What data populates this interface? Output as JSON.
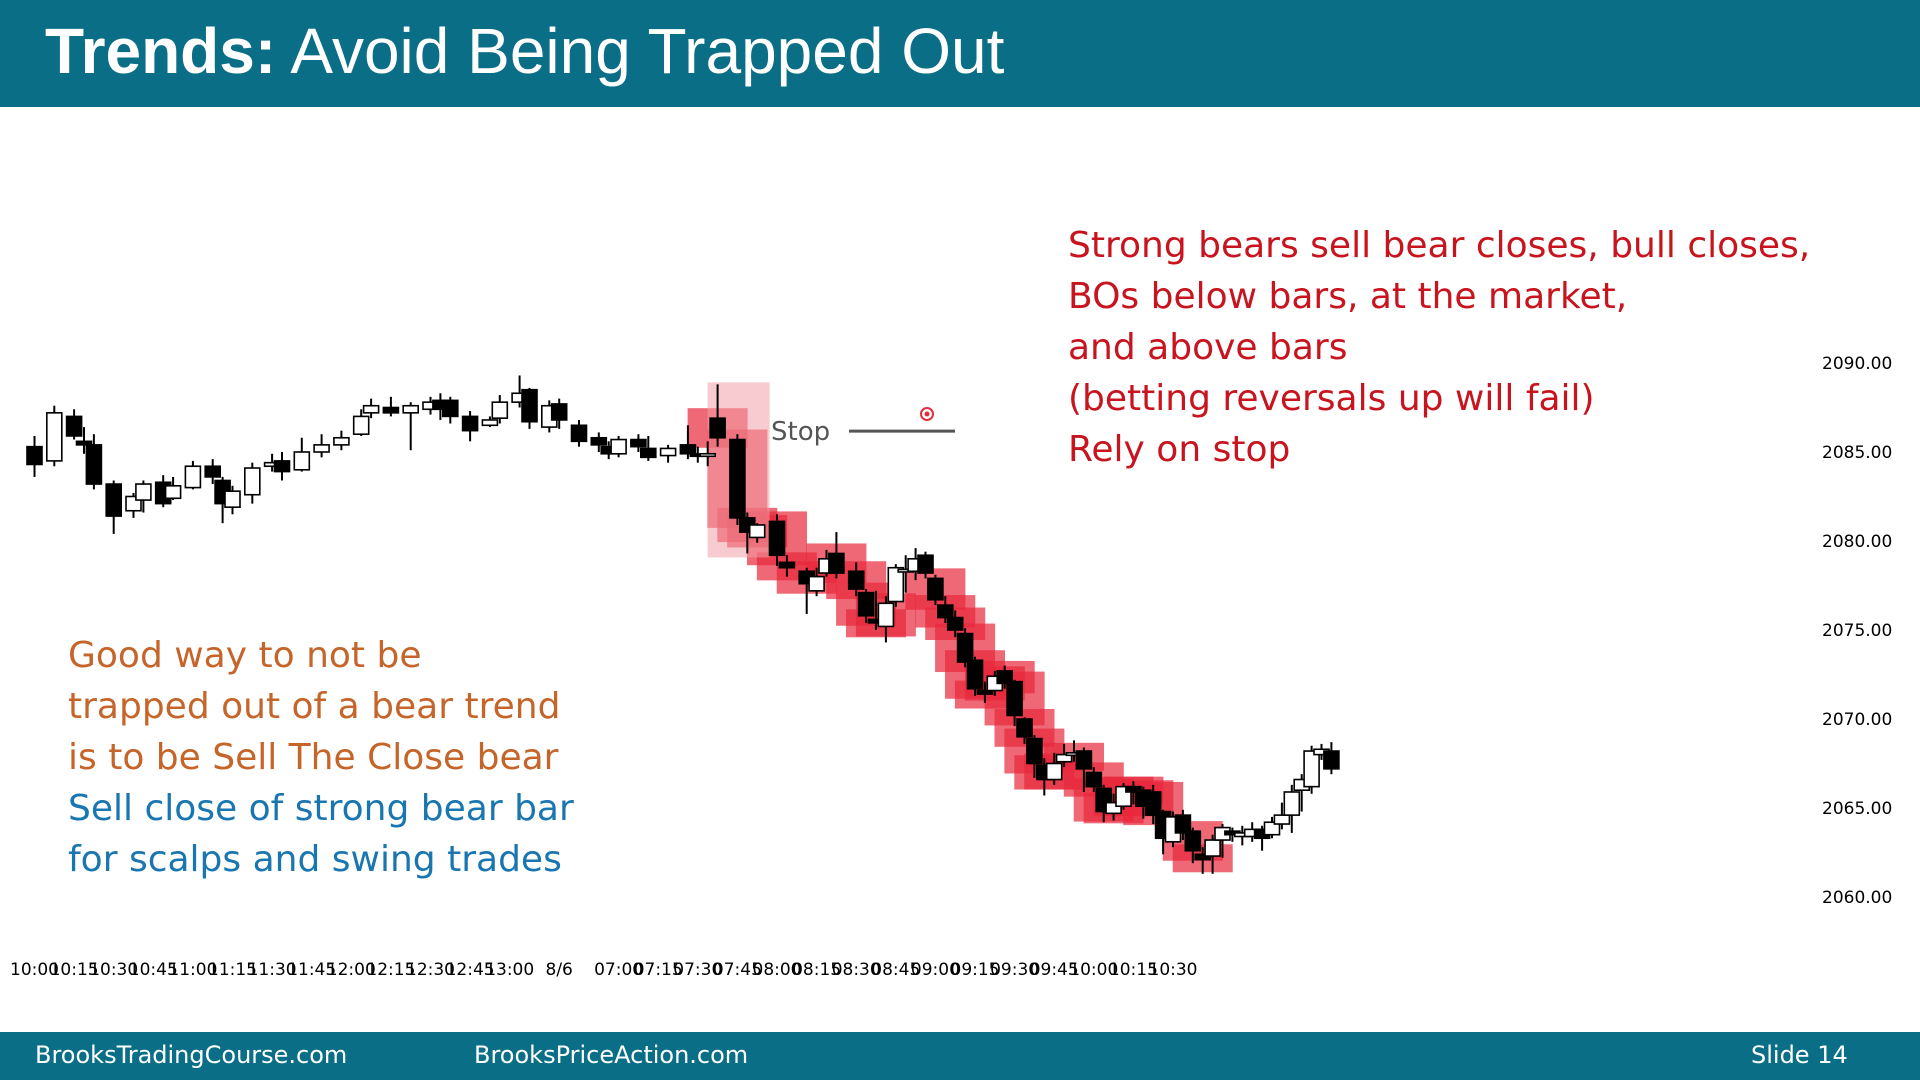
{
  "title": {
    "bold": "Trends:",
    "rest": " Avoid Being Trapped Out"
  },
  "stop_label": "Stop",
  "note_red": [
    "Strong bears sell bear closes, bull closes,",
    "BOs below bars, at the market,",
    "and above bars",
    "(betting reversals up will fail)",
    "Rely on stop"
  ],
  "note_orange": [
    "Good way to not be",
    "trapped out of a bear trend",
    "is to be Sell The Close bear"
  ],
  "note_blue": [
    "Sell close of strong bear bar",
    "for scalps and swing trades"
  ],
  "footer": {
    "left": "BrooksTradingCourse.com",
    "mid": "BrooksPriceAction.com",
    "right": "Slide  14"
  },
  "colors": {
    "header": "#0b6e87",
    "red_text": "#c8141e",
    "orange_text": "#c5652a",
    "blue_text": "#1976b0",
    "highlight": "#e8283c",
    "bull_body": "#ffffff",
    "bear_body": "#000000"
  },
  "chart_data": {
    "type": "candlestick",
    "y_ticks": [
      "2090.00",
      "2085.00",
      "2080.00",
      "2075.00",
      "2070.00",
      "2065.00",
      "2060.00"
    ],
    "ylim": [
      2058,
      2092
    ],
    "x_ticks": [
      "10:00",
      "10:15",
      "10:30",
      "10:45",
      "11:00",
      "11:15",
      "11:30",
      "11:45",
      "12:00",
      "12:15",
      "12:30",
      "12:45",
      "13:00",
      "8/6",
      "07:00",
      "07:15",
      "07:30",
      "07:45",
      "08:00",
      "08:15",
      "08:30",
      "08:45",
      "09:00",
      "09:15",
      "09:30",
      "09:45",
      "10:00",
      "10:15",
      "10:30"
    ],
    "x_tick_bar_index": [
      1,
      5,
      9,
      13,
      17,
      21,
      25,
      29,
      33,
      37,
      41,
      45,
      49,
      54,
      60,
      64,
      68,
      72,
      76,
      80,
      84,
      88,
      92,
      96,
      100,
      104,
      108,
      112,
      116
    ],
    "stop_level": 2085.5,
    "bars": [
      [
        2085.3,
        2084.3,
        2085.9,
        2083.6
      ],
      [
        2084.5,
        2087.2,
        2087.6,
        2084.2
      ],
      [
        2087.0,
        2085.9,
        2087.4,
        2085.7
      ],
      [
        2085.6,
        2085.4,
        2086.4,
        2084.9
      ],
      [
        2085.4,
        2083.2,
        2086.0,
        2082.9
      ],
      [
        2083.2,
        2081.4,
        2083.4,
        2080.4
      ],
      [
        2081.7,
        2082.5,
        2082.7,
        2081.3
      ],
      [
        2082.3,
        2083.2,
        2083.4,
        2081.6
      ],
      [
        2083.3,
        2082.1,
        2083.7,
        2081.9
      ],
      [
        2082.4,
        2083.1,
        2083.6,
        2082.3
      ],
      [
        2083.0,
        2084.2,
        2084.5,
        2082.9
      ],
      [
        2084.2,
        2083.6,
        2084.6,
        2083.2
      ],
      [
        2083.4,
        2082.1,
        2083.6,
        2081.0
      ],
      [
        2081.9,
        2082.8,
        2083.1,
        2081.5
      ],
      [
        2082.6,
        2084.1,
        2084.4,
        2082.1
      ],
      [
        2084.2,
        2084.4,
        2084.9,
        2083.9
      ],
      [
        2084.5,
        2083.9,
        2085.0,
        2083.4
      ],
      [
        2084.0,
        2085.0,
        2085.8,
        2083.9
      ],
      [
        2085.0,
        2085.4,
        2086.0,
        2084.7
      ],
      [
        2085.4,
        2085.8,
        2086.2,
        2085.1
      ],
      [
        2086.0,
        2087.0,
        2087.4,
        2085.9
      ],
      [
        2087.2,
        2087.6,
        2088.0,
        2086.9
      ],
      [
        2087.5,
        2087.2,
        2088.1,
        2087.0
      ],
      [
        2087.2,
        2087.6,
        2087.8,
        2085.1
      ],
      [
        2087.4,
        2087.8,
        2088.1,
        2087.1
      ],
      [
        2087.9,
        2087.4,
        2088.3,
        2086.8
      ],
      [
        2087.9,
        2087.0,
        2088.1,
        2086.6
      ],
      [
        2087.0,
        2086.2,
        2087.3,
        2085.6
      ],
      [
        2086.5,
        2086.8,
        2087.0,
        2086.4
      ],
      [
        2086.9,
        2087.8,
        2088.2,
        2086.6
      ],
      [
        2087.8,
        2088.3,
        2089.3,
        2087.5
      ],
      [
        2088.5,
        2086.7,
        2088.6,
        2086.3
      ],
      [
        2086.4,
        2087.6,
        2087.9,
        2086.1
      ],
      [
        2087.7,
        2086.8,
        2088.0,
        2086.3
      ],
      [
        2086.5,
        2085.6,
        2086.8,
        2085.3
      ],
      [
        2085.8,
        2085.4,
        2086.1,
        2085.0
      ],
      [
        2085.3,
        2084.9,
        2085.6,
        2084.6
      ],
      [
        2084.9,
        2085.7,
        2085.9,
        2084.7
      ],
      [
        2085.7,
        2085.3,
        2086.0,
        2085.0
      ],
      [
        2085.2,
        2084.7,
        2085.9,
        2084.5
      ],
      [
        2084.8,
        2085.2,
        2085.4,
        2084.4
      ],
      [
        2085.4,
        2084.9,
        2086.5,
        2084.6
      ],
      [
        2084.9,
        2084.8,
        2085.3,
        2084.4
      ],
      [
        2084.8,
        2084.9,
        2085.6,
        2084.2
      ],
      [
        2086.9,
        2085.8,
        2088.8,
        2085.3
      ],
      [
        2085.7,
        2081.3,
        2086.0,
        2080.9
      ],
      [
        2081.3,
        2080.5,
        2081.6,
        2079.3
      ],
      [
        2080.2,
        2080.9,
        2081.0,
        2079.9
      ],
      [
        2081.1,
        2079.2,
        2081.5,
        2078.6
      ],
      [
        2078.8,
        2078.5,
        2079.2,
        2078.0
      ],
      [
        2078.3,
        2077.6,
        2078.5,
        2075.9
      ],
      [
        2077.2,
        2078.0,
        2078.5,
        2076.9
      ],
      [
        2078.2,
        2079.0,
        2079.5,
        2078.0
      ],
      [
        2079.3,
        2078.2,
        2080.5,
        2077.9
      ],
      [
        2078.3,
        2077.3,
        2078.8,
        2076.9
      ],
      [
        2077.1,
        2075.8,
        2077.3,
        2075.4
      ],
      [
        2075.6,
        2075.4,
        2077.2,
        2075.0
      ],
      [
        2075.2,
        2076.5,
        2076.9,
        2074.3
      ],
      [
        2076.6,
        2078.5,
        2078.7,
        2076.3
      ],
      [
        2078.3,
        2078.4,
        2079.2,
        2077.1
      ],
      [
        2078.3,
        2079.0,
        2079.6,
        2077.8
      ],
      [
        2079.2,
        2078.2,
        2079.4,
        2077.9
      ],
      [
        2077.9,
        2076.7,
        2078.1,
        2076.4
      ],
      [
        2076.4,
        2075.7,
        2076.9,
        2075.4
      ],
      [
        2075.7,
        2075.0,
        2076.1,
        2074.6
      ],
      [
        2074.8,
        2073.2,
        2075.1,
        2072.9
      ],
      [
        2073.3,
        2071.7,
        2073.5,
        2071.3
      ],
      [
        2071.6,
        2071.4,
        2072.1,
        2070.9
      ],
      [
        2071.6,
        2072.4,
        2072.7,
        2071.3
      ],
      [
        2072.7,
        2072.0,
        2073.0,
        2071.7
      ],
      [
        2072.1,
        2070.2,
        2072.2,
        2069.6
      ],
      [
        2070.0,
        2069.0,
        2070.1,
        2068.6
      ],
      [
        2068.9,
        2067.5,
        2069.1,
        2066.7
      ],
      [
        2067.4,
        2066.6,
        2067.8,
        2065.7
      ],
      [
        2066.6,
        2067.5,
        2068.1,
        2066.3
      ],
      [
        2067.6,
        2068.0,
        2068.6,
        2067.3
      ],
      [
        2068.0,
        2068.1,
        2068.8,
        2067.6
      ],
      [
        2068.2,
        2067.2,
        2068.4,
        2065.9
      ],
      [
        2067.0,
        2066.2,
        2067.3,
        2065.9
      ],
      [
        2066.1,
        2064.8,
        2066.3,
        2064.2
      ],
      [
        2064.7,
        2065.3,
        2065.8,
        2064.3
      ],
      [
        2065.1,
        2066.2,
        2066.4,
        2064.9
      ],
      [
        2066.2,
        2065.9,
        2066.5,
        2065.2
      ],
      [
        2066.0,
        2065.1,
        2066.2,
        2064.4
      ],
      [
        2065.9,
        2064.6,
        2066.3,
        2064.1
      ],
      [
        2064.8,
        2063.3,
        2064.9,
        2062.4
      ],
      [
        2063.1,
        2064.5,
        2064.8,
        2062.8
      ],
      [
        2064.6,
        2063.6,
        2064.9,
        2063.2
      ],
      [
        2063.7,
        2062.6,
        2063.9,
        2061.9
      ],
      [
        2062.4,
        2062.1,
        2062.8,
        2061.3
      ],
      [
        2062.3,
        2063.2,
        2063.5,
        2061.3
      ],
      [
        2063.2,
        2063.9,
        2064.1,
        2062.2
      ],
      [
        2063.7,
        2063.5,
        2063.9,
        2063.1
      ],
      [
        2063.4,
        2063.6,
        2064.0,
        2062.9
      ],
      [
        2063.4,
        2063.8,
        2064.2,
        2063.1
      ],
      [
        2063.8,
        2063.3,
        2064.0,
        2062.6
      ],
      [
        2063.5,
        2064.2,
        2064.5,
        2063.3
      ],
      [
        2064.1,
        2064.6,
        2065.3,
        2063.8
      ],
      [
        2064.6,
        2065.9,
        2066.3,
        2063.6
      ],
      [
        2066.0,
        2066.6,
        2066.9,
        2064.8
      ],
      [
        2066.2,
        2068.2,
        2068.5,
        2065.8
      ],
      [
        2068.0,
        2068.3,
        2068.6,
        2067.7
      ],
      [
        2068.2,
        2067.2,
        2068.7,
        2066.9
      ]
    ],
    "bar_slot": [
      1,
      3,
      5,
      6,
      7,
      9,
      11,
      12,
      14,
      15,
      17,
      19,
      20,
      21,
      23,
      25,
      26,
      28,
      30,
      32,
      34,
      35,
      37,
      39,
      41,
      42,
      43,
      45,
      47,
      48,
      50,
      51,
      53,
      54,
      56,
      58,
      59,
      60,
      62,
      63,
      65,
      67,
      68,
      69,
      70,
      72,
      73,
      74,
      76,
      77,
      79,
      80,
      81,
      82,
      84,
      85,
      86,
      87,
      88,
      89,
      90,
      91,
      92,
      93,
      94,
      95,
      96,
      97,
      98,
      99,
      100,
      101,
      102,
      103,
      104,
      105,
      106,
      107,
      108,
      109,
      110,
      111,
      112,
      113,
      114,
      115,
      116,
      117,
      118,
      119,
      120,
      121,
      122,
      123,
      124,
      125,
      126,
      127,
      128,
      129,
      130,
      131,
      132
    ],
    "highlight_bars": [
      44,
      45,
      46,
      47,
      48,
      49,
      50,
      53,
      54,
      55,
      56,
      57,
      62,
      63,
      64,
      65,
      66,
      67,
      68,
      69,
      70,
      71,
      72,
      73,
      74,
      76,
      78,
      79,
      80,
      81,
      82,
      83,
      84,
      88,
      89
    ]
  }
}
